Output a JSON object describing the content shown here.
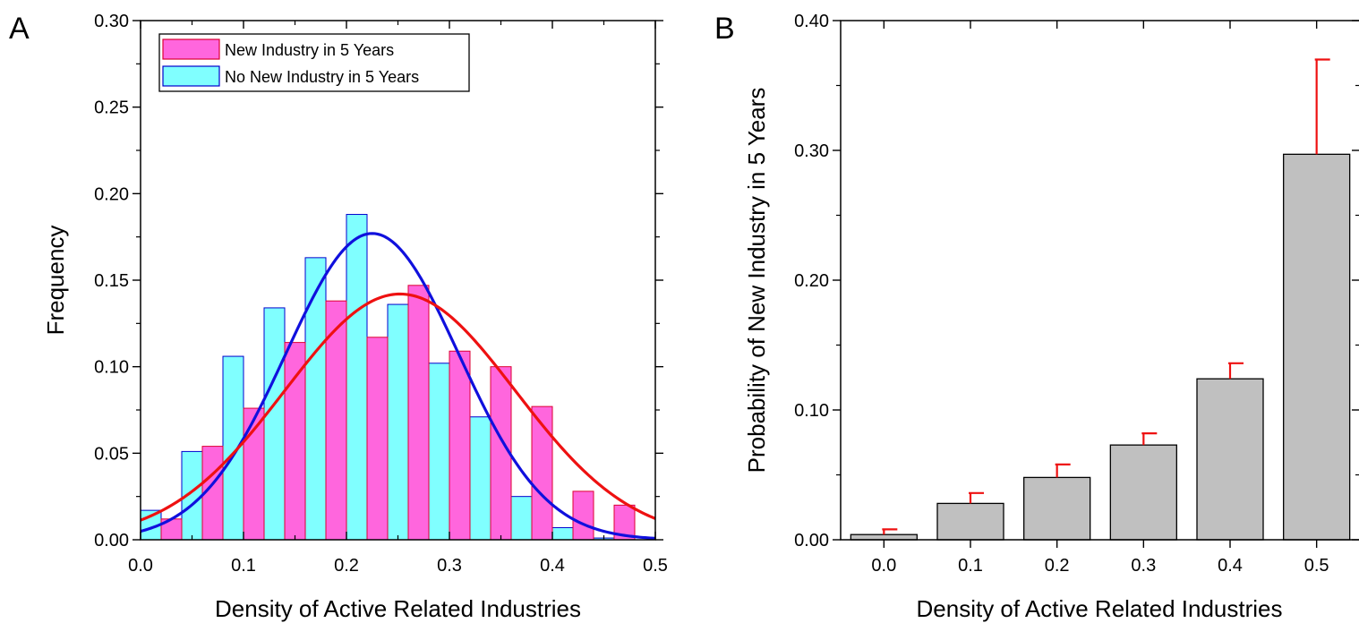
{
  "chart_data": [
    {
      "panel_label": "A",
      "type": "bar",
      "xlabel": "Density of Active Related Industries",
      "ylabel": "Frequency",
      "xlim": [
        0.0,
        0.5
      ],
      "ylim": [
        0.0,
        0.3
      ],
      "xticks": [
        "0.0",
        "0.1",
        "0.2",
        "0.3",
        "0.4",
        "0.5"
      ],
      "yticks": [
        "0.00",
        "0.05",
        "0.10",
        "0.15",
        "0.20",
        "0.25",
        "0.30"
      ],
      "legend_position": "top-left",
      "bin_width": 0.04,
      "series": [
        {
          "name": "No New Industry in 5 Years",
          "fill": "#80ffff",
          "stroke": "#0000cc",
          "bin_centers": [
            0.02,
            0.06,
            0.1,
            0.14,
            0.18,
            0.22,
            0.26,
            0.3,
            0.34,
            0.38,
            0.42,
            0.46
          ],
          "values": [
            0.017,
            0.051,
            0.106,
            0.134,
            0.163,
            0.188,
            0.136,
            0.102,
            0.071,
            0.025,
            0.007,
            0.001
          ],
          "fit": {
            "color": "#1010dd",
            "peak": 0.177,
            "mean": 0.225,
            "sd": 0.084
          }
        },
        {
          "name": "New Industry in 5 Years",
          "fill": "#ff66dd",
          "stroke": "#dd0033",
          "bin_centers": [
            0.02,
            0.06,
            0.1,
            0.14,
            0.18,
            0.22,
            0.26,
            0.3,
            0.34,
            0.38,
            0.42,
            0.46
          ],
          "values": [
            0.012,
            0.054,
            0.076,
            0.114,
            0.138,
            0.117,
            0.147,
            0.109,
            0.1,
            0.077,
            0.028,
            0.02
          ],
          "fit": {
            "color": "#ee1111",
            "peak": 0.142,
            "mean": 0.252,
            "sd": 0.112
          }
        }
      ]
    },
    {
      "panel_label": "B",
      "type": "bar",
      "xlabel": "Density of Active Related Industries",
      "ylabel": "Probability of New Industry in 5 Years",
      "categories": [
        "0.0",
        "0.1",
        "0.2",
        "0.3",
        "0.4",
        "0.5"
      ],
      "values": [
        0.004,
        0.028,
        0.048,
        0.073,
        0.124,
        0.297
      ],
      "errors": [
        0.004,
        0.008,
        0.01,
        0.009,
        0.012,
        0.073
      ],
      "ylim": [
        0.0,
        0.4
      ],
      "yticks": [
        "0.00",
        "0.10",
        "0.20",
        "0.30",
        "0.40"
      ],
      "bar_fill": "#c0c0c0",
      "error_color": "#ee1111"
    }
  ]
}
